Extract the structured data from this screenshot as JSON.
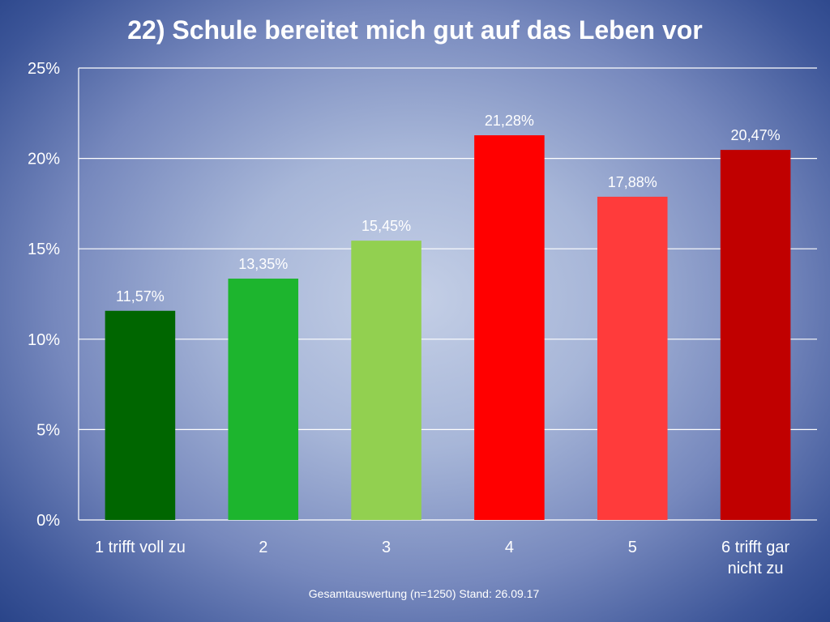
{
  "chart_data": {
    "type": "bar",
    "title": "22) Schule bereitet mich gut auf das Leben vor",
    "footer": "Gesamtauswertung (n=1250) Stand: 26.09.17",
    "categories": [
      [
        "1 trifft voll zu"
      ],
      [
        "2"
      ],
      [
        "3"
      ],
      [
        "4"
      ],
      [
        "5"
      ],
      [
        "6 trifft gar",
        "nicht zu"
      ]
    ],
    "values": [
      11.57,
      13.35,
      15.45,
      21.28,
      17.88,
      20.47
    ],
    "data_labels": [
      "11,57%",
      "13,35%",
      "15,45%",
      "21,28%",
      "17,88%",
      "20,47%"
    ],
    "colors": [
      "#006600",
      "#1db52e",
      "#92d050",
      "#ff0000",
      "#ff3b3b",
      "#c00000"
    ],
    "ylim": [
      0,
      25
    ],
    "yticks": [
      0,
      5,
      10,
      15,
      20,
      25
    ],
    "ytick_labels": [
      "0%",
      "5%",
      "10%",
      "15%",
      "20%",
      "25%"
    ],
    "grid": true,
    "xlabel": "",
    "ylabel": ""
  }
}
